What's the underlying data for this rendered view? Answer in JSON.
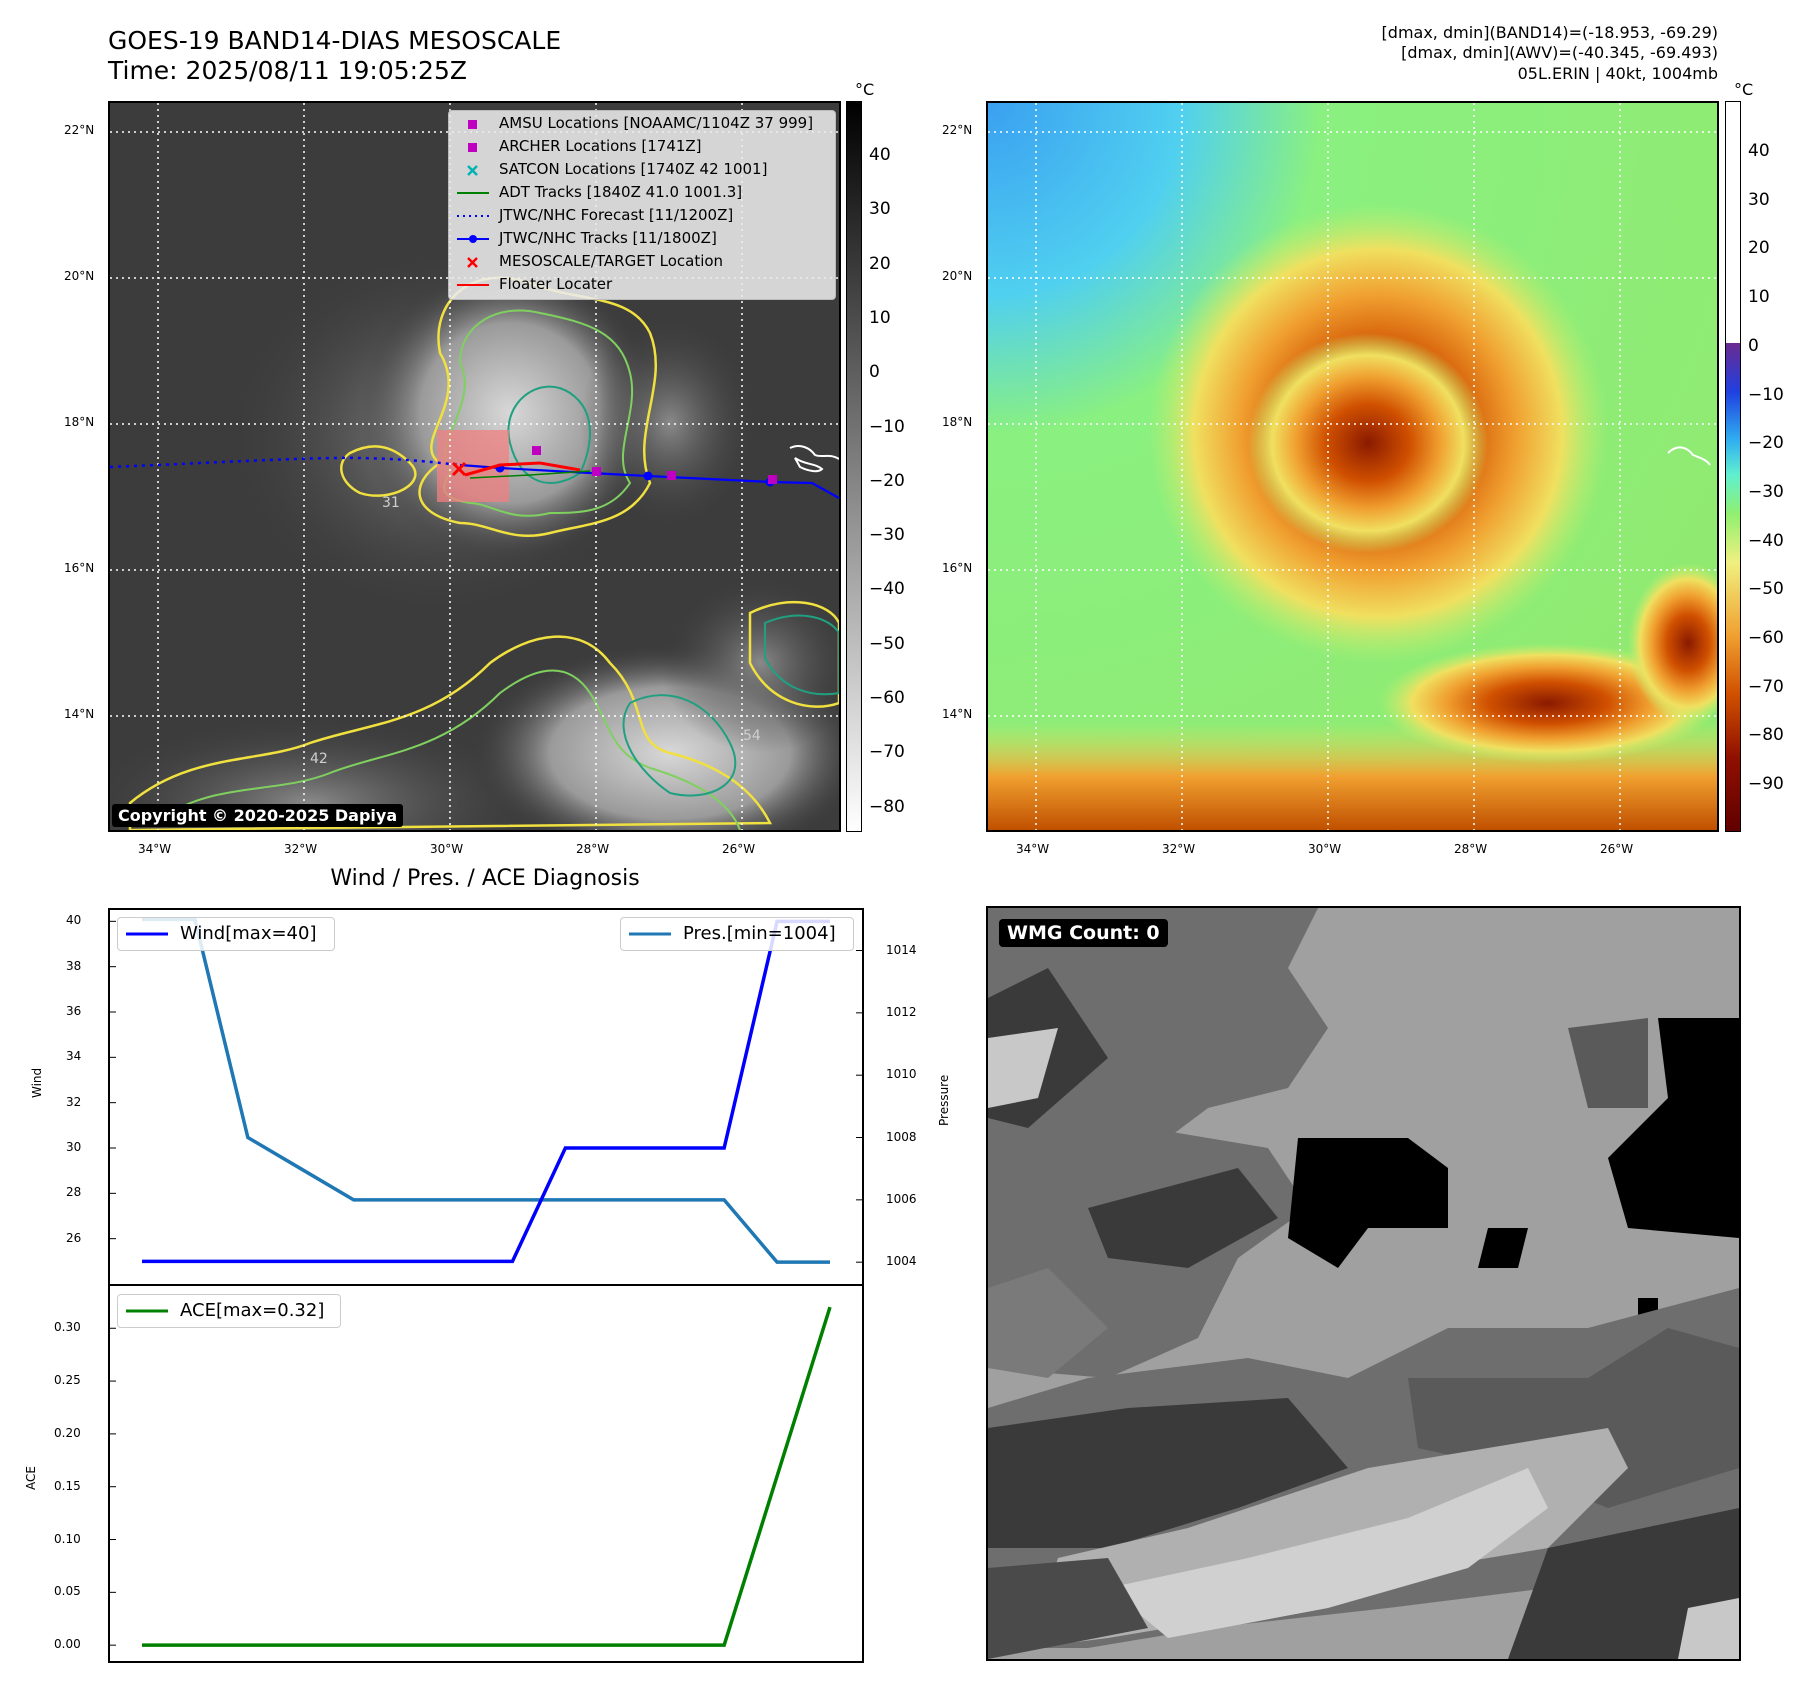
{
  "header": {
    "title_line1": "GOES-19 BAND14-DIAS MESOSCALE",
    "title_line2": "Time: 2025/08/11 19:05:25Z",
    "right_line1": "[dmax, dmin](BAND14)=(-18.953, -69.29)",
    "right_line2": "[dmax, dmin](AWV)=(-40.345, -69.493)",
    "right_line3": "05L.ERIN | 40kt, 1004mb"
  },
  "map": {
    "lat_labels": [
      "22°N",
      "20°N",
      "18°N",
      "16°N",
      "14°N"
    ],
    "lon_labels": [
      "34°W",
      "32°W",
      "30°W",
      "28°W",
      "26°W"
    ],
    "copyright": "Copyright © 2020-2025 Dapiya",
    "contour_labels": [
      "31",
      "54",
      "42"
    ],
    "legend": [
      {
        "label": "AMSU Locations [NOAAMC/1104Z 37 999]",
        "color": "#c000c0",
        "marker": "square"
      },
      {
        "label": "ARCHER Locations [1741Z]",
        "color": "#c000c0",
        "marker": "square"
      },
      {
        "label": "SATCON Locations [1740Z 42 1001]",
        "color": "#00b3b3",
        "marker": "x"
      },
      {
        "label": "ADT Tracks [1840Z 41.0 1001.3]",
        "color": "#008000",
        "marker": "line"
      },
      {
        "label": "JTWC/NHC Forecast [11/1200Z]",
        "color": "#0000ff",
        "marker": "dotted"
      },
      {
        "label": "JTWC/NHC Tracks [11/1800Z]",
        "color": "#0000ff",
        "marker": "line-dot"
      },
      {
        "label": "MESOSCALE/TARGET Location",
        "color": "#ff0000",
        "marker": "x"
      },
      {
        "label": "Floater Locater",
        "color": "#ff0000",
        "marker": "line"
      }
    ]
  },
  "colorbar_left": {
    "unit": "°C",
    "ticks": [
      "40",
      "30",
      "20",
      "10",
      "0",
      "−10",
      "−20",
      "−30",
      "−40",
      "−50",
      "−60",
      "−70",
      "−80"
    ]
  },
  "colorbar_right": {
    "unit": "°C",
    "ticks": [
      "40",
      "30",
      "20",
      "10",
      "0",
      "−10",
      "−20",
      "−30",
      "−40",
      "−50",
      "−60",
      "−70",
      "−80",
      "−90"
    ]
  },
  "chart_data": [
    {
      "type": "line",
      "title": "Wind / Pres. / ACE Diagnosis",
      "x": [
        0,
        1,
        2,
        3,
        4,
        5,
        6,
        7,
        8,
        9,
        10,
        11,
        12,
        13
      ],
      "series": [
        {
          "name": "Wind[max=40]",
          "axis": "left",
          "color": "#0000ff",
          "values": [
            25,
            25,
            25,
            25,
            25,
            25,
            25,
            25,
            30,
            30,
            30,
            30,
            40,
            40
          ]
        },
        {
          "name": "Pres.[min=1004]",
          "axis": "right",
          "color": "#1f77b4",
          "values": [
            1015,
            1015,
            1008,
            1007,
            1006,
            1006,
            1006,
            1006,
            1006,
            1006,
            1006,
            1006,
            1004,
            1004
          ]
        }
      ],
      "ylabel": "Wind",
      "ylabel_right": "Pressure",
      "ylim": [
        24,
        40.5
      ],
      "ylim_right": [
        1003.3,
        1015.3
      ],
      "yticks": [
        "26",
        "28",
        "30",
        "32",
        "34",
        "36",
        "38",
        "40"
      ],
      "yticks_right": [
        "1004",
        "1006",
        "1008",
        "1010",
        "1012",
        "1014"
      ],
      "legend": [
        "top-left",
        "top-right"
      ]
    },
    {
      "type": "line",
      "x": [
        0,
        1,
        2,
        3,
        4,
        5,
        6,
        7,
        8,
        9,
        10,
        11,
        12,
        13
      ],
      "series": [
        {
          "name": "ACE[max=0.32]",
          "color": "#008000",
          "values": [
            0,
            0,
            0,
            0,
            0,
            0,
            0,
            0,
            0,
            0,
            0,
            0,
            0.16,
            0.32
          ]
        }
      ],
      "ylabel": "ACE",
      "ylim": [
        -0.015,
        0.34
      ],
      "yticks": [
        "0.00",
        "0.05",
        "0.10",
        "0.15",
        "0.20",
        "0.25",
        "0.30"
      ],
      "legend": "top-left"
    }
  ],
  "wmg": {
    "label": "WMG Count: 0"
  }
}
